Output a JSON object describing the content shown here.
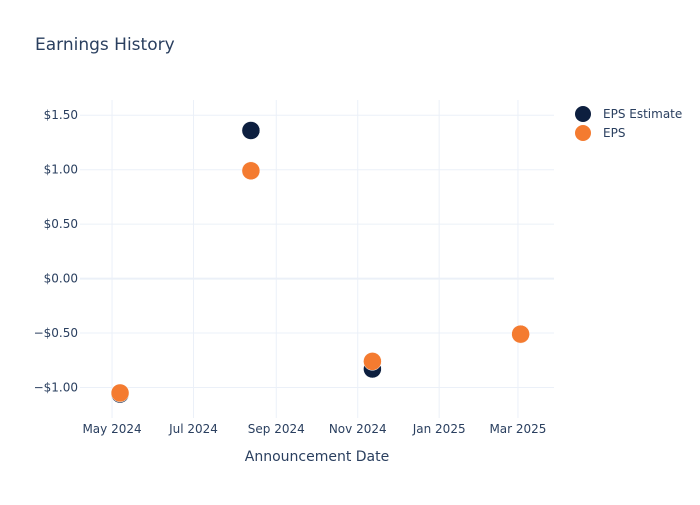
{
  "chart_data": {
    "type": "scatter",
    "title": "Earnings History",
    "xlabel": "Announcement Date",
    "ylabel": "",
    "x_tick_labels": [
      "May 2024",
      "Jul 2024",
      "Sep 2024",
      "Nov 2024",
      "Jan 2025",
      "Mar 2025"
    ],
    "x_ticks": [
      "2024-05-01",
      "2024-07-01",
      "2024-09-01",
      "2024-11-01",
      "2025-01-01",
      "2025-03-01"
    ],
    "xlim": [
      "2024-04-07",
      "2025-03-28"
    ],
    "y_tick_labels": [
      "$1.50",
      "$1.00",
      "$0.50",
      "$0.00",
      "−$0.50",
      "−$1.00"
    ],
    "y_ticks": [
      1.5,
      1.0,
      0.5,
      0.0,
      -0.5,
      -1.0
    ],
    "ylim": [
      -1.28,
      1.64
    ],
    "grid": true,
    "legend_position": "top-right",
    "series": [
      {
        "name": "EPS Estimate",
        "color": "#0d1f3f",
        "points": [
          {
            "x": "2024-05-07",
            "y": -1.06
          },
          {
            "x": "2024-08-13",
            "y": 1.36
          },
          {
            "x": "2024-11-12",
            "y": -0.83
          },
          {
            "x": "2025-03-03",
            "y": -0.51
          }
        ]
      },
      {
        "name": "EPS",
        "color": "#f47b30",
        "points": [
          {
            "x": "2024-05-07",
            "y": -1.05
          },
          {
            "x": "2024-08-13",
            "y": 0.99
          },
          {
            "x": "2024-11-12",
            "y": -0.76
          },
          {
            "x": "2025-03-03",
            "y": -0.51
          }
        ]
      }
    ]
  }
}
